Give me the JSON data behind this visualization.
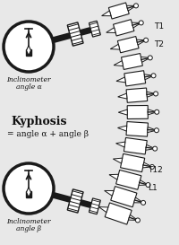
{
  "bg_color": "#e8e8e8",
  "kyphosis_text_line1": "Kyphosis",
  "kyphosis_text_line2": "= angle α + angle β",
  "inclinometer_top_line1": "Inclinometer",
  "inclinometer_top_line2": "angle α",
  "inclinometer_bot_line1": "Inclinometer",
  "inclinometer_bot_line2": "angle β",
  "label_T1": "T1",
  "label_T2": "T2",
  "label_T12": "T12",
  "label_L1": "L1",
  "spine_color": "#1a1a1a",
  "text_color": "#111111"
}
